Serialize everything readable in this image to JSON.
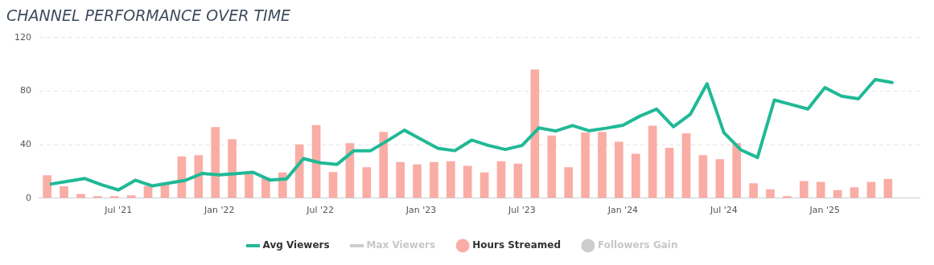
{
  "chart_data": {
    "type": "bar",
    "title": "CHANNEL PERFORMANCE OVER TIME",
    "x": [
      "2021-03",
      "2021-04",
      "2021-05",
      "2021-06",
      "2021-07",
      "2021-08",
      "2021-09",
      "2021-10",
      "2021-11",
      "2021-12",
      "2022-01",
      "2022-02",
      "2022-03",
      "2022-04",
      "2022-05",
      "2022-06",
      "2022-07",
      "2022-08",
      "2022-09",
      "2022-10",
      "2022-11",
      "2022-12",
      "2023-01",
      "2023-02",
      "2023-03",
      "2023-04",
      "2023-05",
      "2023-06",
      "2023-07",
      "2023-08",
      "2023-09",
      "2023-10",
      "2023-11",
      "2023-12",
      "2024-01",
      "2024-02",
      "2024-03",
      "2024-04",
      "2024-05",
      "2024-06",
      "2024-07",
      "2024-08",
      "2024-09",
      "2024-10",
      "2024-11",
      "2024-12",
      "2025-01",
      "2025-02",
      "2025-03",
      "2025-04",
      "2025-05"
    ],
    "series": [
      {
        "name": "Avg Viewers",
        "type": "line",
        "color": "#20b996",
        "values": [
          10.6,
          12.6,
          14.7,
          10,
          6.2,
          13.4,
          9.2,
          11.3,
          13.4,
          18.5,
          17.4,
          18.3,
          19.4,
          13.6,
          14.5,
          29.6,
          26.4,
          25.3,
          35.5,
          35.5,
          43,
          50.8,
          44,
          37.2,
          35.5,
          43.4,
          39.4,
          36.4,
          39.4,
          52.5,
          50.2,
          54.3,
          50.4,
          52.3,
          54.5,
          61.3,
          66.6,
          53.4,
          62.6,
          85.5,
          49,
          36.2,
          30.4,
          73.4,
          70,
          66.6,
          82.6,
          76.2,
          74.3,
          88.7,
          86.4
        ]
      },
      {
        "name": "Max Viewers",
        "type": "line",
        "color": "#cccccc",
        "values": [
          null,
          null,
          null,
          null,
          null,
          null,
          null,
          null,
          null,
          null,
          null,
          null,
          null,
          null,
          null,
          null,
          null,
          null,
          null,
          null,
          null,
          null,
          null,
          null,
          null,
          null,
          null,
          null,
          null,
          null,
          null,
          null,
          null,
          null,
          null,
          null,
          null,
          null,
          null,
          null,
          null,
          null,
          null,
          null,
          null,
          null,
          null,
          null,
          null,
          null,
          null
        ]
      },
      {
        "name": "Hours Streamed",
        "color": "#f9ada5",
        "values": [
          17,
          8.7,
          3,
          1.3,
          1.3,
          2,
          9,
          11,
          31,
          32,
          53,
          44,
          18,
          15.5,
          19,
          40,
          54.5,
          19.4,
          41,
          23,
          49.4,
          26.8,
          25,
          26.8,
          27.4,
          24,
          19,
          27.4,
          25.7,
          96,
          46.6,
          23,
          48.9,
          49.4,
          42,
          33,
          54,
          37.5,
          48.3,
          32,
          29,
          41,
          11,
          6.4,
          1.3,
          12.6,
          12,
          5.8,
          8,
          12,
          14.3
        ]
      },
      {
        "name": "Followers Gain",
        "color": "#cccccc",
        "values": [
          null,
          null,
          null,
          null,
          null,
          null,
          null,
          null,
          null,
          null,
          null,
          null,
          null,
          null,
          null,
          null,
          null,
          null,
          null,
          null,
          null,
          null,
          null,
          null,
          null,
          null,
          null,
          null,
          null,
          null,
          null,
          null,
          null,
          null,
          null,
          null,
          null,
          null,
          null,
          null,
          null,
          null,
          null,
          null,
          null,
          null,
          null,
          null,
          null,
          null,
          null
        ]
      }
    ],
    "xlim": [
      "2021-02-10",
      "2025-06-20"
    ],
    "xticks": [
      {
        "value": "2021-07",
        "label": "Jul '21"
      },
      {
        "value": "2022-01",
        "label": "Jan '22"
      },
      {
        "value": "2022-07",
        "label": "Jul '22"
      },
      {
        "value": "2023-01",
        "label": "Jan '23"
      },
      {
        "value": "2023-07",
        "label": "Jul '23"
      },
      {
        "value": "2024-01",
        "label": "Jan '24"
      },
      {
        "value": "2024-07",
        "label": "Jul '24"
      },
      {
        "value": "2025-01",
        "label": "Jan '25"
      }
    ],
    "ylim": [
      0,
      120
    ],
    "yticks": [
      0,
      40,
      80,
      120
    ],
    "grid": "y",
    "legend": "bottom"
  }
}
